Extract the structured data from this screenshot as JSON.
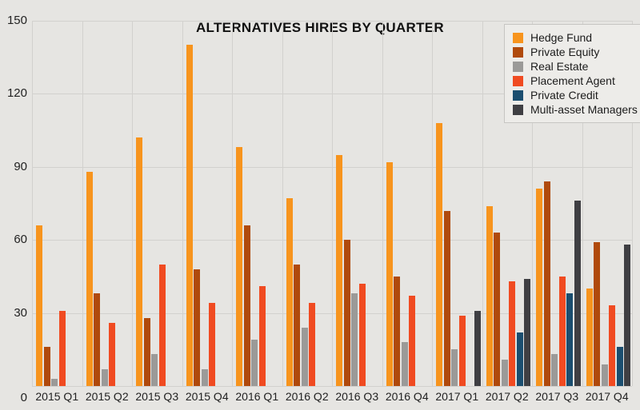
{
  "chart_data": {
    "type": "bar",
    "title": "ALTERNATIVES HIRES BY QUARTER",
    "categories": [
      "2015 Q1",
      "2015 Q2",
      "2015 Q3",
      "2015 Q4",
      "2016 Q1",
      "2016 Q2",
      "2016 Q3",
      "2016 Q4",
      "2017 Q1",
      "2017 Q2",
      "2017 Q3",
      "2017 Q4"
    ],
    "series": [
      {
        "name": "Hedge Fund",
        "color": "#f7941d",
        "values": [
          66,
          88,
          102,
          140,
          98,
          77,
          95,
          92,
          108,
          74,
          81,
          40
        ]
      },
      {
        "name": "Private Equity",
        "color": "#b04a0c",
        "values": [
          16,
          38,
          28,
          48,
          66,
          50,
          60,
          45,
          72,
          63,
          84,
          59
        ]
      },
      {
        "name": "Real Estate",
        "color": "#9b9a98",
        "values": [
          3,
          7,
          13,
          7,
          19,
          24,
          38,
          18,
          15,
          11,
          13,
          9
        ]
      },
      {
        "name": "Placement Agent",
        "color": "#f04b21",
        "values": [
          31,
          26,
          50,
          34,
          41,
          34,
          42,
          37,
          29,
          43,
          45,
          33
        ]
      },
      {
        "name": "Private Credit",
        "color": "#1b4e6f",
        "values": [
          null,
          null,
          null,
          null,
          null,
          null,
          null,
          null,
          null,
          22,
          38,
          16
        ]
      },
      {
        "name": "Multi-asset Managers",
        "color": "#3f3f43",
        "values": [
          null,
          null,
          null,
          null,
          null,
          null,
          null,
          null,
          31,
          44,
          76,
          58
        ]
      }
    ],
    "ylim": [
      0,
      150
    ],
    "yticks": [
      0,
      30,
      60,
      90,
      120,
      150
    ],
    "xlabel": "",
    "ylabel": "",
    "grid": true,
    "legend_position": "top-right"
  }
}
